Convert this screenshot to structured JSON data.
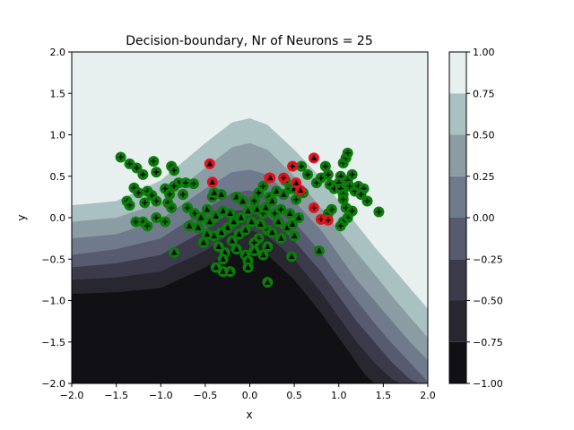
{
  "chart_data": {
    "type": "contour",
    "title": "Decision-boundary, Nr of Neurons = 25",
    "xlabel": "x",
    "ylabel": "y",
    "xlim": [
      -2.0,
      2.0
    ],
    "ylim": [
      -2.0,
      2.0
    ],
    "x_ticks": [
      "−2.0",
      "−1.5",
      "−1.0",
      "−0.5",
      "0.0",
      "0.5",
      "1.0",
      "1.5",
      "2.0"
    ],
    "y_ticks": [
      "−2.0",
      "−1.5",
      "−1.0",
      "−0.5",
      "0.0",
      "0.5",
      "1.0",
      "1.5",
      "2.0"
    ],
    "colorbar": {
      "levels": [
        -1.0,
        -0.75,
        -0.5,
        -0.25,
        0.0,
        0.25,
        0.5,
        0.75,
        1.0
      ],
      "tick_labels": [
        "−1.00",
        "−0.75",
        "−0.50",
        "−0.25",
        "0.00",
        "0.25",
        "0.50",
        "0.75",
        "1.00"
      ],
      "colors": [
        "#111014",
        "#28262f",
        "#3c3b4c",
        "#585a70",
        "#6f7b8d",
        "#8b9da3",
        "#aac1c2",
        "#e7f0ef"
      ]
    },
    "boundaries": [
      {
        "level": -0.75,
        "x": [
          -2.0,
          -1.5,
          -1.0,
          -0.5,
          -0.2,
          0.0,
          0.2,
          0.5,
          0.8,
          1.0,
          1.2,
          1.3,
          1.4
        ],
        "y": [
          -0.92,
          -0.9,
          -0.85,
          -0.6,
          -0.4,
          -0.4,
          -0.45,
          -0.75,
          -1.15,
          -1.45,
          -1.75,
          -1.9,
          -2.0
        ]
      },
      {
        "level": -0.5,
        "x": [
          -2.0,
          -1.5,
          -1.0,
          -0.5,
          -0.2,
          0.0,
          0.2,
          0.5,
          0.8,
          1.0,
          1.2,
          1.4,
          1.6,
          1.7
        ],
        "y": [
          -0.75,
          -0.72,
          -0.65,
          -0.4,
          -0.18,
          -0.15,
          -0.22,
          -0.5,
          -0.9,
          -1.2,
          -1.5,
          -1.75,
          -1.95,
          -2.0
        ]
      },
      {
        "level": -0.25,
        "x": [
          -2.0,
          -1.5,
          -1.0,
          -0.5,
          -0.2,
          0.0,
          0.2,
          0.5,
          0.8,
          1.0,
          1.2,
          1.4,
          1.6,
          1.8,
          1.9
        ],
        "y": [
          -0.6,
          -0.55,
          -0.45,
          -0.15,
          0.08,
          0.1,
          0.02,
          -0.28,
          -0.65,
          -0.95,
          -1.25,
          -1.5,
          -1.75,
          -1.95,
          -2.0
        ]
      },
      {
        "level": 0.0,
        "x": [
          -2.0,
          -1.5,
          -1.0,
          -0.5,
          -0.2,
          0.0,
          0.2,
          0.5,
          0.8,
          1.0,
          1.2,
          1.4,
          1.6,
          1.8,
          2.0
        ],
        "y": [
          -0.45,
          -0.38,
          -0.25,
          0.1,
          0.3,
          0.33,
          0.25,
          -0.05,
          -0.42,
          -0.72,
          -1.0,
          -1.27,
          -1.52,
          -1.75,
          -1.98
        ]
      },
      {
        "level": 0.25,
        "x": [
          -2.0,
          -1.5,
          -1.0,
          -0.5,
          -0.2,
          0.0,
          0.2,
          0.5,
          0.8,
          1.0,
          1.2,
          1.4,
          1.6,
          1.8,
          2.0
        ],
        "y": [
          -0.25,
          -0.2,
          -0.02,
          0.35,
          0.55,
          0.58,
          0.52,
          0.2,
          -0.15,
          -0.45,
          -0.75,
          -1.0,
          -1.25,
          -1.5,
          -1.72
        ]
      },
      {
        "level": 0.5,
        "x": [
          -2.0,
          -1.5,
          -1.0,
          -0.5,
          -0.2,
          0.0,
          0.2,
          0.5,
          0.8,
          1.0,
          1.2,
          1.4,
          1.6,
          1.8,
          2.0
        ],
        "y": [
          -0.05,
          0.0,
          0.18,
          0.6,
          0.85,
          0.9,
          0.82,
          0.5,
          0.12,
          -0.15,
          -0.42,
          -0.68,
          -0.95,
          -1.2,
          -1.45
        ]
      },
      {
        "level": 0.75,
        "x": [
          -2.0,
          -1.5,
          -1.0,
          -0.5,
          -0.2,
          0.0,
          0.2,
          0.5,
          0.8,
          1.0,
          1.2,
          1.4,
          1.6,
          1.8,
          2.0
        ],
        "y": [
          0.15,
          0.2,
          0.45,
          0.9,
          1.15,
          1.2,
          1.12,
          0.82,
          0.48,
          0.2,
          -0.08,
          -0.35,
          -0.6,
          -0.85,
          -1.1
        ]
      }
    ],
    "series": [
      {
        "name": "",
        "edge": "green",
        "marker": "plus",
        "points": [
          [
            -1.45,
            0.73
          ],
          [
            -1.35,
            0.65
          ],
          [
            -1.27,
            0.6
          ],
          [
            -1.2,
            0.52
          ],
          [
            -1.08,
            0.68
          ],
          [
            -1.05,
            0.55
          ],
          [
            -0.88,
            0.62
          ],
          [
            -0.85,
            0.57
          ],
          [
            -0.8,
            0.42
          ],
          [
            -0.72,
            0.42
          ],
          [
            -0.63,
            0.41
          ],
          [
            -1.3,
            0.36
          ],
          [
            -1.25,
            0.3
          ],
          [
            -1.38,
            0.2
          ],
          [
            -1.35,
            0.15
          ],
          [
            -1.15,
            0.32
          ],
          [
            -1.1,
            0.27
          ],
          [
            -1.18,
            0.18
          ],
          [
            -1.05,
            0.2
          ],
          [
            -0.95,
            0.35
          ],
          [
            -0.9,
            0.28
          ],
          [
            -0.85,
            0.38
          ],
          [
            -0.92,
            0.18
          ],
          [
            -0.88,
            0.12
          ],
          [
            -0.75,
            0.28
          ],
          [
            -0.7,
            0.12
          ],
          [
            -1.05,
            0.0
          ],
          [
            -1.2,
            -0.05
          ],
          [
            -1.15,
            -0.1
          ],
          [
            -1.28,
            -0.05
          ],
          [
            -0.95,
            -0.05
          ],
          [
            -0.62,
            0.05
          ],
          [
            0.05,
            0.2
          ],
          [
            0.1,
            0.3
          ],
          [
            0.15,
            0.05
          ],
          [
            0.22,
            0.25
          ],
          [
            0.28,
            0.05
          ],
          [
            0.35,
            0.1
          ],
          [
            0.45,
            0.35
          ],
          [
            0.52,
            0.22
          ],
          [
            0.6,
            0.3
          ],
          [
            0.65,
            0.52
          ],
          [
            0.58,
            0.62
          ],
          [
            0.75,
            0.42
          ],
          [
            0.8,
            0.48
          ],
          [
            0.88,
            0.52
          ],
          [
            0.85,
            0.62
          ],
          [
            0.9,
            0.4
          ],
          [
            0.95,
            0.35
          ],
          [
            1.02,
            0.5
          ],
          [
            1.05,
            0.66
          ],
          [
            1.08,
            0.72
          ],
          [
            1.1,
            0.78
          ],
          [
            1.0,
            0.42
          ],
          [
            1.02,
            0.35
          ],
          [
            1.05,
            0.28
          ],
          [
            1.1,
            0.45
          ],
          [
            1.15,
            0.52
          ],
          [
            1.12,
            0.38
          ],
          [
            1.18,
            0.32
          ],
          [
            1.22,
            0.38
          ],
          [
            1.28,
            0.35
          ],
          [
            1.25,
            0.28
          ],
          [
            1.32,
            0.2
          ],
          [
            1.05,
            0.22
          ],
          [
            1.08,
            0.12
          ],
          [
            1.15,
            0.08
          ],
          [
            1.1,
            0.0
          ],
          [
            1.05,
            -0.05
          ],
          [
            1.02,
            -0.1
          ],
          [
            1.45,
            0.07
          ],
          [
            0.88,
            0.05
          ],
          [
            0.92,
            0.1
          ],
          [
            0.2,
            -0.15
          ],
          [
            0.1,
            -0.25
          ],
          [
            0.05,
            -0.3
          ],
          [
            0.15,
            0.38
          ]
        ]
      },
      {
        "name": "",
        "edge": "green",
        "marker": "triangle",
        "points": [
          [
            -0.85,
            -0.42
          ],
          [
            -0.42,
            0.25
          ],
          [
            -0.32,
            0.28
          ],
          [
            -0.48,
            0.1
          ],
          [
            -0.55,
            0.0
          ],
          [
            -0.68,
            -0.1
          ],
          [
            -0.58,
            -0.12
          ],
          [
            -0.45,
            -0.05
          ],
          [
            -0.38,
            0.02
          ],
          [
            -0.3,
            0.08
          ],
          [
            -0.22,
            0.05
          ],
          [
            -0.15,
            0.25
          ],
          [
            -0.08,
            0.2
          ],
          [
            -0.02,
            0.08
          ],
          [
            -0.1,
            0.0
          ],
          [
            -0.18,
            -0.05
          ],
          [
            -0.25,
            -0.12
          ],
          [
            -0.32,
            -0.18
          ],
          [
            -0.4,
            -0.22
          ],
          [
            -0.48,
            -0.2
          ],
          [
            -0.52,
            -0.3
          ],
          [
            -0.35,
            -0.35
          ],
          [
            -0.28,
            -0.42
          ],
          [
            -0.2,
            -0.28
          ],
          [
            -0.12,
            -0.2
          ],
          [
            -0.05,
            -0.15
          ],
          [
            0.02,
            -0.05
          ],
          [
            0.08,
            0.1
          ],
          [
            0.12,
            -0.08
          ],
          [
            0.18,
            0.12
          ],
          [
            0.25,
            0.2
          ],
          [
            0.3,
            0.32
          ],
          [
            0.38,
            0.28
          ],
          [
            0.32,
            -0.05
          ],
          [
            0.25,
            -0.18
          ],
          [
            0.35,
            -0.25
          ],
          [
            0.42,
            -0.12
          ],
          [
            0.48,
            -0.08
          ],
          [
            0.5,
            -0.22
          ],
          [
            0.45,
            0.05
          ],
          [
            0.55,
            0.0
          ],
          [
            0.2,
            -0.35
          ],
          [
            0.15,
            -0.45
          ],
          [
            0.05,
            -0.4
          ],
          [
            -0.05,
            -0.45
          ],
          [
            -0.15,
            -0.38
          ],
          [
            -0.3,
            -0.5
          ],
          [
            -0.38,
            -0.6
          ],
          [
            -0.3,
            -0.65
          ],
          [
            -0.22,
            -0.65
          ],
          [
            -0.02,
            -0.52
          ],
          [
            -0.02,
            -0.6
          ],
          [
            0.2,
            -0.78
          ],
          [
            0.47,
            -0.47
          ],
          [
            0.78,
            -0.4
          ],
          [
            0.4,
            0.45
          ],
          [
            0.5,
            0.35
          ],
          [
            -0.4,
            0.3
          ]
        ]
      },
      {
        "name": "",
        "edge": "red",
        "marker": "plus",
        "points": [
          [
            0.48,
            0.62
          ],
          [
            0.38,
            0.48
          ],
          [
            0.72,
            0.12
          ],
          [
            0.8,
            -0.02
          ],
          [
            0.88,
            -0.03
          ],
          [
            0.22,
            0.48
          ]
        ]
      },
      {
        "name": "",
        "edge": "red",
        "marker": "triangle",
        "points": [
          [
            -0.45,
            0.65
          ],
          [
            -0.42,
            0.43
          ],
          [
            0.23,
            0.48
          ],
          [
            0.72,
            0.72
          ],
          [
            0.52,
            0.42
          ],
          [
            0.57,
            0.33
          ]
        ]
      }
    ]
  }
}
